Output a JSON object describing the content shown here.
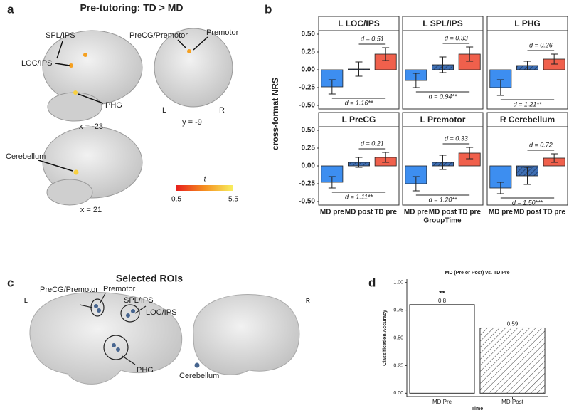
{
  "panel_labels": [
    "a",
    "b",
    "c",
    "d"
  ],
  "slices": {
    "title": "Pre-tutoring: TD > MD",
    "labels": [
      "SPL/IPS",
      "LOC/IPS",
      "PHG",
      "PreCG/Premotor",
      "Premotor",
      "Cerebellum"
    ],
    "coords": [
      "x = -23",
      "y = -9",
      "x = 21"
    ],
    "hemispheres": [
      "L",
      "R"
    ],
    "colorbar": {
      "title": "t",
      "range": [
        0.5,
        5.5
      ]
    }
  },
  "rois": {
    "title": "Selected ROIs",
    "labels": [
      "PreCG/Premotor",
      "Premotor",
      "SPL/IPS",
      "LOC/IPS",
      "PHG",
      "Cerebellum"
    ],
    "hemispheres": [
      "L",
      "R"
    ]
  },
  "chart_data": [
    {
      "type": "facet-bar",
      "ylabel": "cross-format NRS",
      "xlabel": "GroupTime",
      "categories": [
        "MD pre",
        "MD post",
        "TD pre"
      ],
      "colors": [
        "#3d8ef0",
        "#3f6fb3",
        "#f0604c"
      ],
      "hatch": [
        false,
        true,
        false
      ],
      "ylim": [
        -0.55,
        0.55
      ],
      "yticks": [
        {
          "value": 0.5,
          "label": "0.50"
        },
        {
          "value": 0.25,
          "label": "0.25"
        },
        {
          "value": 0,
          "label": "0.00"
        },
        {
          "value": -0.25,
          "label": "-0.25"
        },
        {
          "value": -0.5,
          "label": "-0.50"
        }
      ],
      "facets": [
        {
          "title": "L LOC/IPS",
          "values": [
            -0.24,
            0.01,
            0.22
          ],
          "errors": [
            0.1,
            0.1,
            0.09
          ],
          "annotations": [
            "d = 0.51",
            "d = 1.16**"
          ]
        },
        {
          "title": "L SPL/IPS",
          "values": [
            -0.15,
            0.07,
            0.22
          ],
          "errors": [
            0.1,
            0.11,
            0.1
          ],
          "annotations": [
            "d = 0.33",
            "d = 0.94**"
          ]
        },
        {
          "title": "L PHG",
          "values": [
            -0.25,
            0.06,
            0.15
          ],
          "errors": [
            0.11,
            0.06,
            0.07
          ],
          "annotations": [
            "d = 0.26",
            "d = 1.21**"
          ]
        },
        {
          "title": "L PreCG",
          "values": [
            -0.23,
            0.05,
            0.12
          ],
          "errors": [
            0.08,
            0.07,
            0.07
          ],
          "annotations": [
            "d = 0.21",
            "d = 1.11**"
          ]
        },
        {
          "title": "L Premotor",
          "values": [
            -0.25,
            0.05,
            0.18
          ],
          "errors": [
            0.1,
            0.1,
            0.08
          ],
          "annotations": [
            "d = 0.33",
            "d = 1.20**"
          ]
        },
        {
          "title": "R Cerebellum",
          "values": [
            -0.31,
            -0.14,
            0.11
          ],
          "errors": [
            0.08,
            0.12,
            0.06
          ],
          "annotations": [
            "d = 0.72",
            "d = 1.50***"
          ]
        }
      ]
    },
    {
      "type": "bar",
      "title": "MD (Pre or Post) vs. TD Pre",
      "categories": [
        "MD Pre",
        "MD Post"
      ],
      "values": [
        0.8,
        0.59
      ],
      "hatch": [
        false,
        true
      ],
      "annotations": [
        "**"
      ],
      "xlabel": "Time",
      "ylabel": "Classification Accuracy",
      "ylim": [
        -0.03,
        1.03
      ],
      "yticks": [
        {
          "value": 0,
          "label": "0.00"
        },
        {
          "value": 0.25,
          "label": "0.25"
        },
        {
          "value": 0.5,
          "label": "0.50"
        },
        {
          "value": 0.75,
          "label": "0.75"
        },
        {
          "value": 1,
          "label": "1.00"
        }
      ]
    }
  ]
}
